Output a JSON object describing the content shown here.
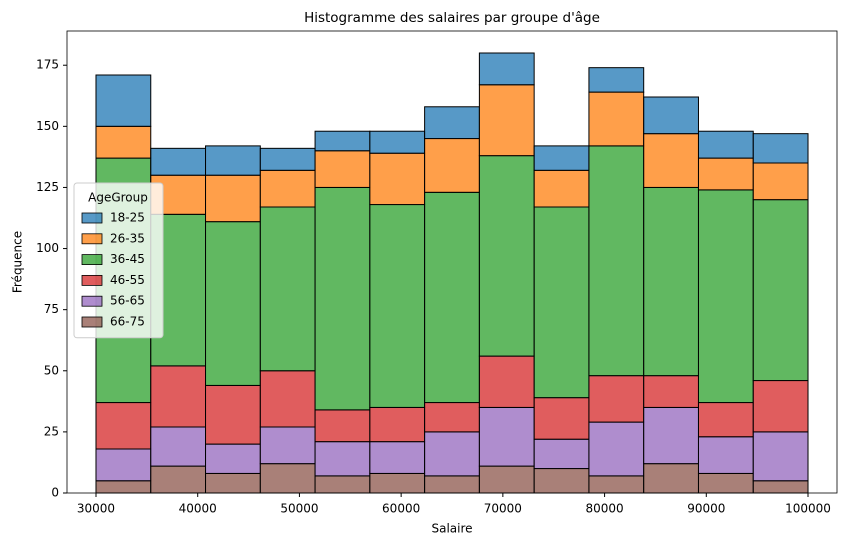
{
  "chart_data": {
    "type": "stacked_histogram",
    "title": "Histogramme des salaires par groupe d'âge",
    "xlabel": "Salaire",
    "ylabel": "Fréquence",
    "bins": [
      30000,
      35385,
      40769,
      46154,
      51538,
      56923,
      62308,
      67692,
      73077,
      78462,
      83846,
      89231,
      94615,
      100000
    ],
    "series": [
      {
        "name": "18-25",
        "color": "#1f77b4",
        "values": [
          21,
          11,
          12,
          9,
          8,
          9,
          13,
          13,
          10,
          10,
          15,
          11,
          12
        ]
      },
      {
        "name": "26-35",
        "color": "#ff7f0e",
        "values": [
          13,
          16,
          19,
          15,
          15,
          21,
          22,
          29,
          15,
          22,
          22,
          13,
          15
        ]
      },
      {
        "name": "36-45",
        "color": "#2ca02c",
        "values": [
          100,
          62,
          67,
          67,
          91,
          83,
          86,
          82,
          78,
          94,
          77,
          87,
          74
        ]
      },
      {
        "name": "46-55",
        "color": "#d62728",
        "values": [
          19,
          25,
          24,
          23,
          13,
          14,
          12,
          21,
          17,
          19,
          13,
          14,
          21
        ]
      },
      {
        "name": "56-65",
        "color": "#9467bd",
        "values": [
          13,
          16,
          12,
          15,
          14,
          13,
          18,
          24,
          12,
          22,
          23,
          15,
          20
        ]
      },
      {
        "name": "66-75",
        "color": "#8c564b",
        "values": [
          5,
          11,
          8,
          12,
          7,
          8,
          7,
          11,
          10,
          7,
          12,
          8,
          5
        ]
      }
    ],
    "legend_title": "AgeGroup",
    "legend": "center left",
    "xlim": [
      27150,
      102850
    ],
    "xticks": [
      30000,
      40000,
      50000,
      60000,
      70000,
      80000,
      90000,
      100000
    ],
    "ylim": [
      0,
      189
    ],
    "yticks": [
      0,
      25,
      50,
      75,
      100,
      125,
      150,
      175
    ]
  }
}
